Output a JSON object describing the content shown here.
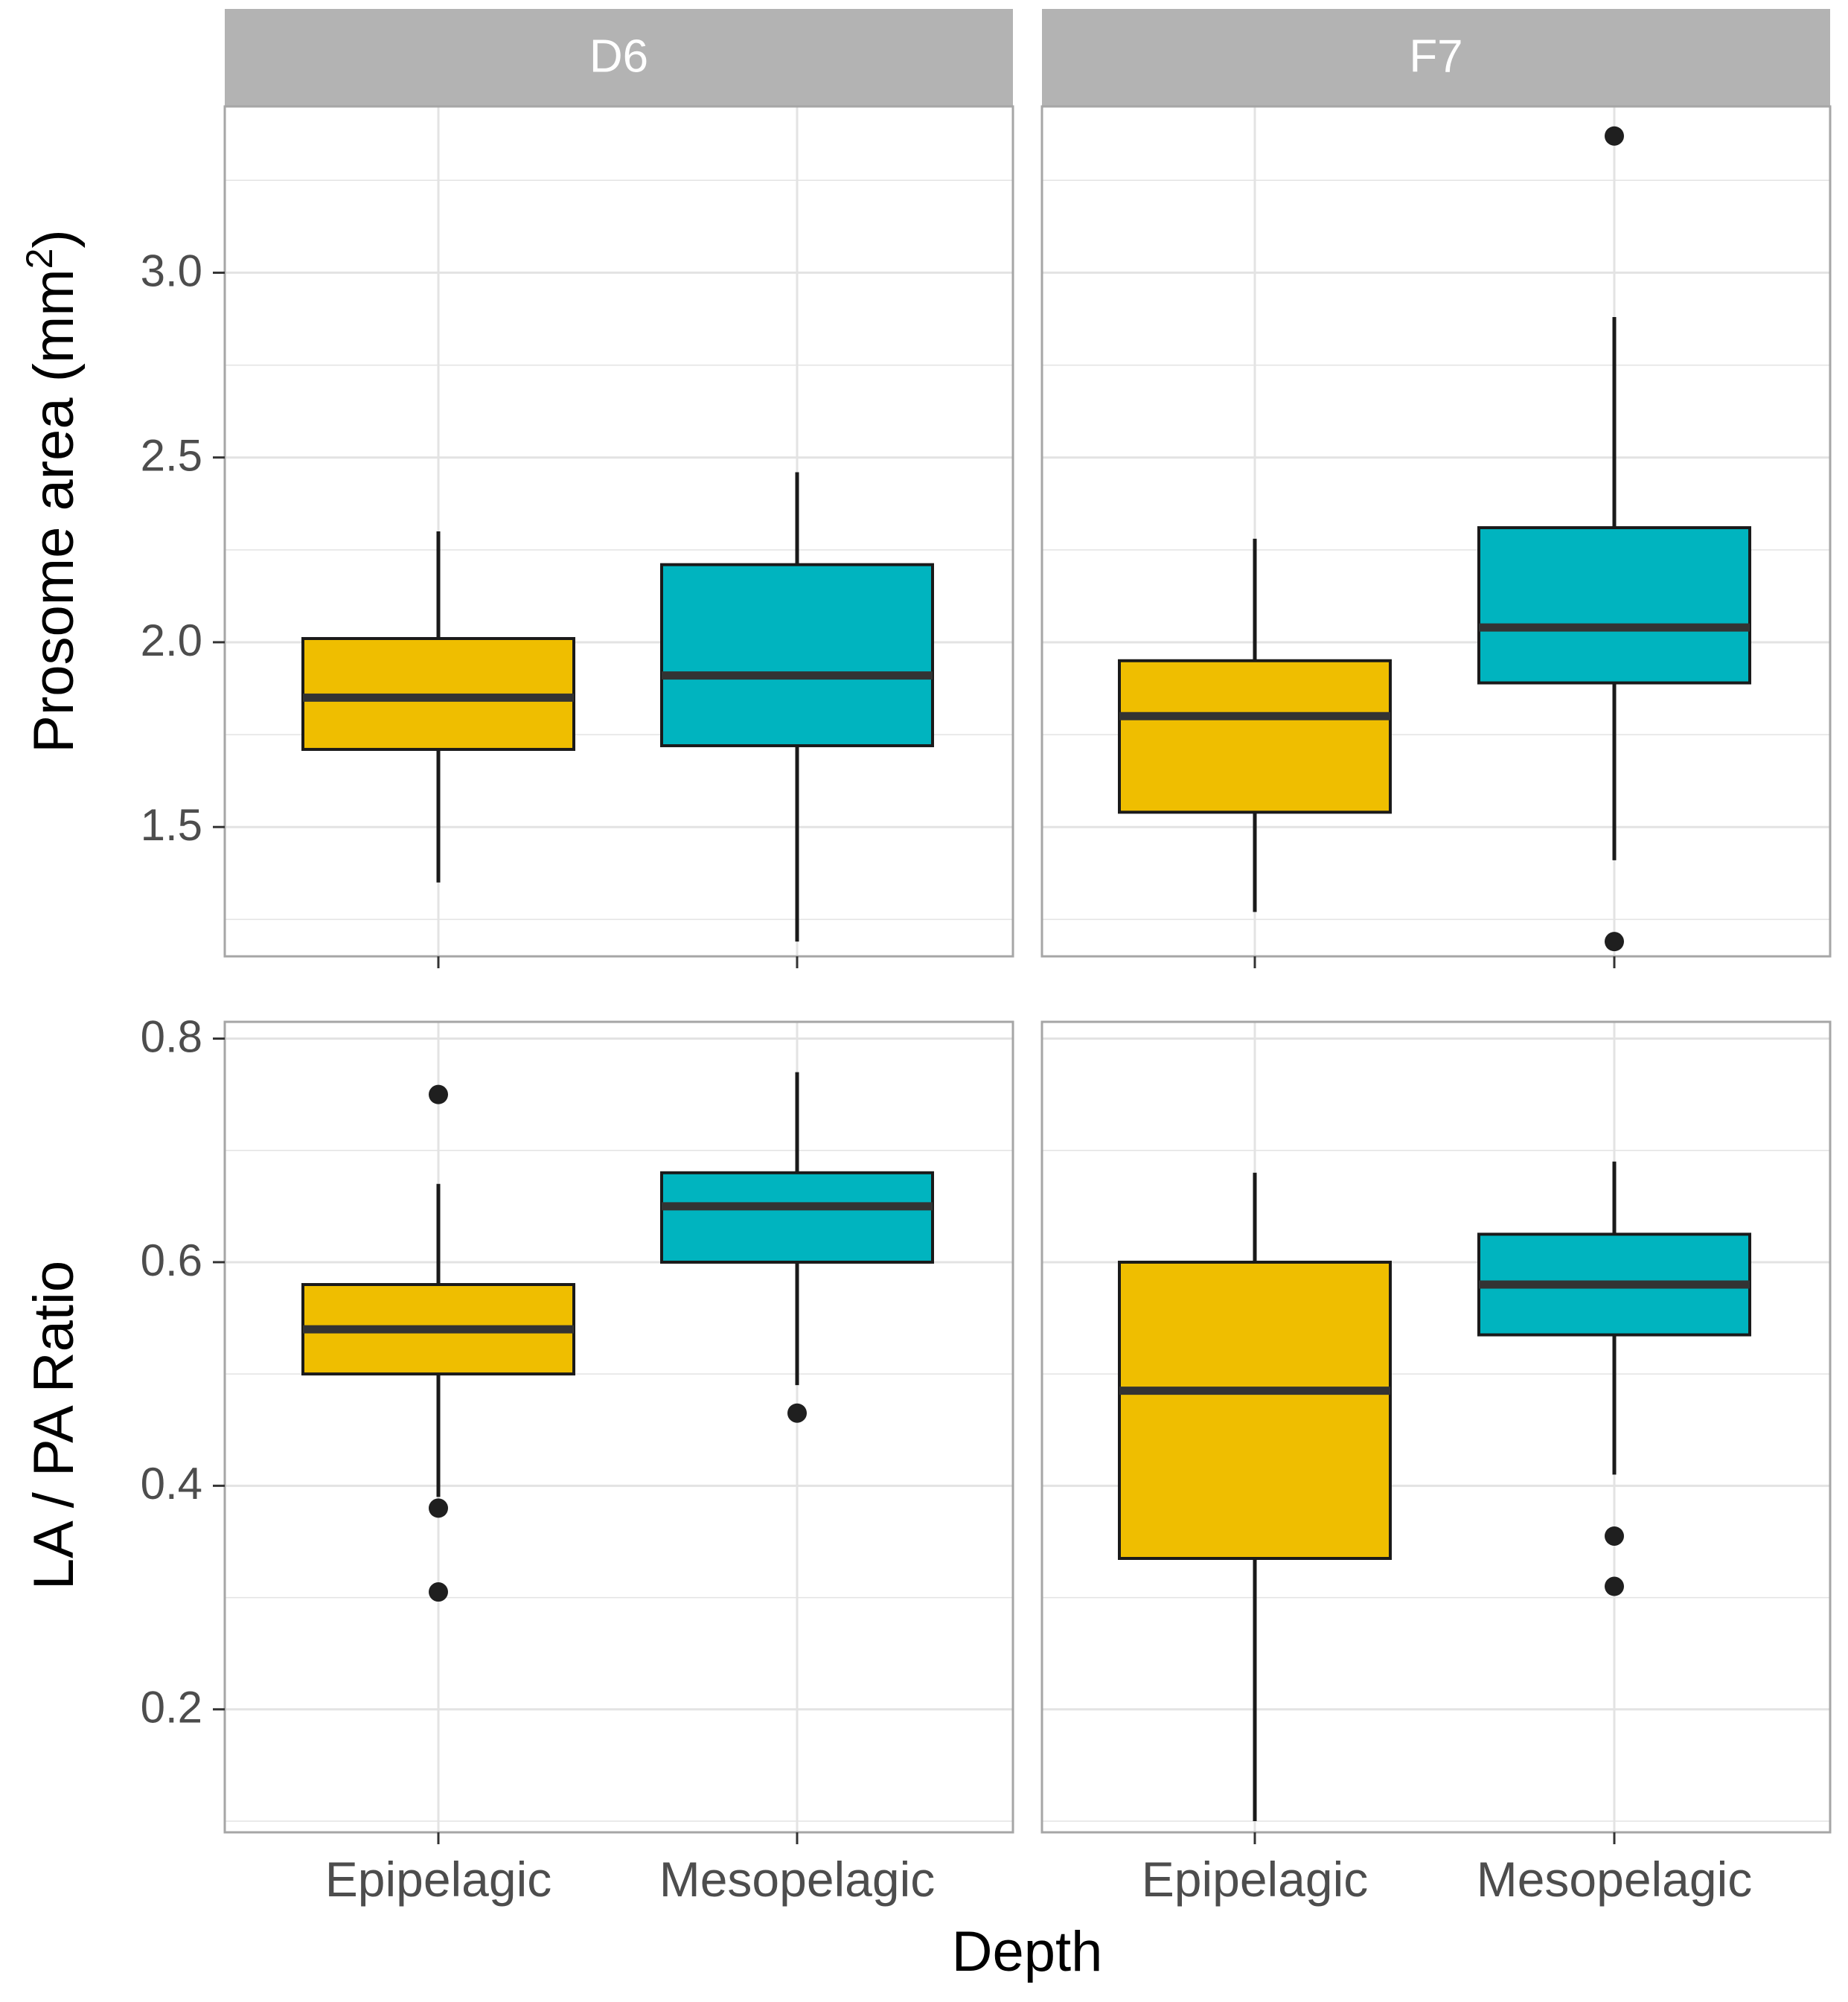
{
  "colors": {
    "epipelagic": "#EFBE00",
    "mesopelagic": "#00B4BF",
    "strip": "#B3B3B3",
    "strip_text": "#FFFFFF",
    "grid": "#E3E3E3",
    "panel_border": "#A6A6A6",
    "box_stroke": "#1A1A1A",
    "median": "#333333",
    "outlier": "#1F1F1F",
    "tick_label": "#4D4D4D",
    "axis_title": "#000000"
  },
  "chart_data": {
    "type": "boxplot",
    "facets": [
      "D6",
      "F7"
    ],
    "categories": [
      "Epipelagic",
      "Mesopelagic"
    ],
    "xlabel": "Depth",
    "rows": [
      {
        "ylabel": "Prosome area (mm2)",
        "ylabel_main": "Prosome area (mm",
        "ylabel_sup": "2",
        "ylabel_end": ")",
        "ylim": [
          1.15,
          3.45
        ],
        "yticks": [
          1.5,
          2.0,
          2.5,
          3.0
        ],
        "ytick_labels": [
          "1.5",
          "2.0",
          "2.5",
          "3.0"
        ],
        "panels": [
          {
            "facet": "D6",
            "boxes": [
              {
                "category": "Epipelagic",
                "lower_whisker": 1.35,
                "q1": 1.71,
                "median": 1.85,
                "q3": 2.01,
                "upper_whisker": 2.3,
                "outliers": []
              },
              {
                "category": "Mesopelagic",
                "lower_whisker": 1.19,
                "q1": 1.72,
                "median": 1.91,
                "q3": 2.21,
                "upper_whisker": 2.46,
                "outliers": []
              }
            ]
          },
          {
            "facet": "F7",
            "boxes": [
              {
                "category": "Epipelagic",
                "lower_whisker": 1.27,
                "q1": 1.54,
                "median": 1.8,
                "q3": 1.95,
                "upper_whisker": 2.28,
                "outliers": []
              },
              {
                "category": "Mesopelagic",
                "lower_whisker": 1.41,
                "q1": 1.89,
                "median": 2.04,
                "q3": 2.31,
                "upper_whisker": 2.88,
                "outliers": [
                  3.37,
                  1.19
                ]
              }
            ]
          }
        ]
      },
      {
        "ylabel": "LA / PA Ratio",
        "ylim": [
          0.09,
          0.815
        ],
        "yticks": [
          0.2,
          0.4,
          0.6,
          0.8
        ],
        "ytick_labels": [
          "0.2",
          "0.4",
          "0.6",
          "0.8"
        ],
        "panels": [
          {
            "facet": "D6",
            "boxes": [
              {
                "category": "Epipelagic",
                "lower_whisker": 0.39,
                "q1": 0.5,
                "median": 0.54,
                "q3": 0.58,
                "upper_whisker": 0.67,
                "outliers": [
                  0.75,
                  0.38,
                  0.305
                ]
              },
              {
                "category": "Mesopelagic",
                "lower_whisker": 0.49,
                "q1": 0.6,
                "median": 0.65,
                "q3": 0.68,
                "upper_whisker": 0.77,
                "outliers": [
                  0.465
                ]
              }
            ]
          },
          {
            "facet": "F7",
            "boxes": [
              {
                "category": "Epipelagic",
                "lower_whisker": 0.1,
                "q1": 0.335,
                "median": 0.485,
                "q3": 0.6,
                "upper_whisker": 0.68,
                "outliers": []
              },
              {
                "category": "Mesopelagic",
                "lower_whisker": 0.41,
                "q1": 0.535,
                "median": 0.58,
                "q3": 0.625,
                "upper_whisker": 0.69,
                "outliers": [
                  0.355,
                  0.31
                ]
              }
            ]
          }
        ]
      }
    ]
  }
}
